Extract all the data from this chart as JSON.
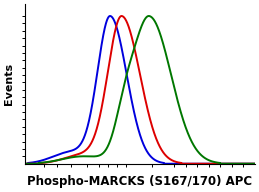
{
  "xlabel": "Phospho-MARCKS (S167/170) APC",
  "ylabel": "Events",
  "xlabel_fontsize": 8.5,
  "xlabel_fontweight": "bold",
  "ylabel_fontsize": 8,
  "ylabel_fontweight": "bold",
  "bg_color": "#ffffff",
  "plot_bg_color": "#ffffff",
  "blue_color": "#0000dd",
  "red_color": "#dd0000",
  "green_color": "#007700",
  "line_width": 1.4,
  "xmin": 0.0,
  "xmax": 1.0,
  "ymin": 0.0,
  "ymax": 1.08
}
